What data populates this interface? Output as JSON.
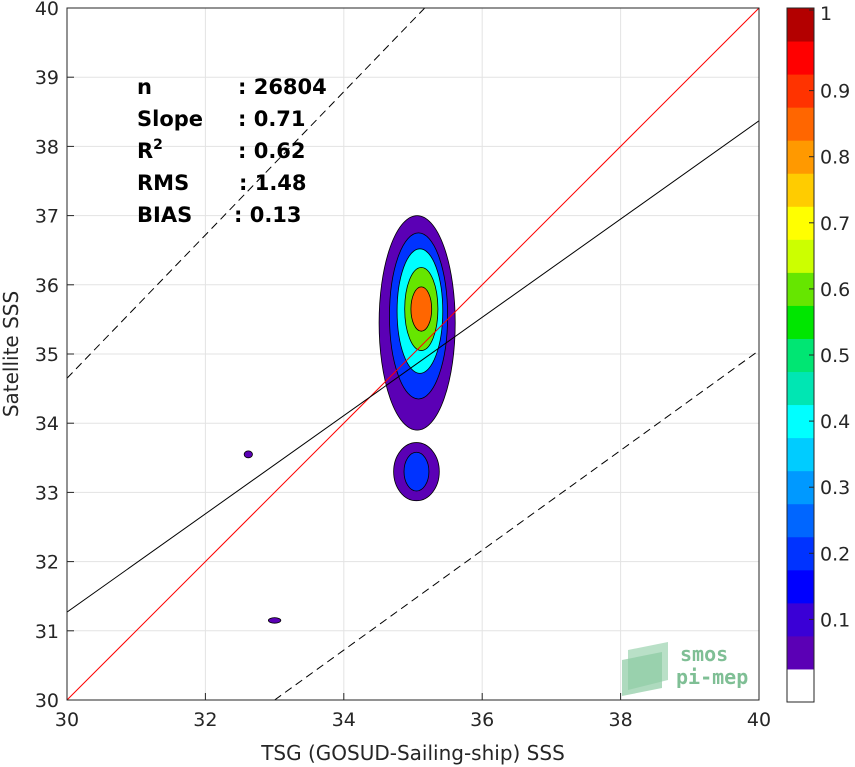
{
  "chart_data": {
    "type": "contour-scatter",
    "xlabel": "TSG (GOSUD-Sailing-ship) SSS",
    "ylabel": "Satellite SSS",
    "xlim": [
      30,
      40
    ],
    "ylim": [
      30,
      40
    ],
    "xticks": [
      "30",
      "32",
      "34",
      "36",
      "38",
      "40"
    ],
    "yticks": [
      "30",
      "31",
      "32",
      "33",
      "34",
      "35",
      "36",
      "37",
      "38",
      "39",
      "40"
    ],
    "grid": true,
    "stats": [
      {
        "name": "n",
        "value": ": 26804"
      },
      {
        "name": "Slope",
        "value": ": 0.71"
      },
      {
        "name": "R",
        "sup": "2",
        "value": ": 0.62"
      },
      {
        "name": "RMS",
        "value": ": 1.48"
      },
      {
        "name": "BIAS",
        "value": ": 0.13"
      }
    ],
    "lines": {
      "identity": {
        "color": "#ff0000",
        "points": [
          [
            30,
            30
          ],
          [
            40,
            40
          ]
        ]
      },
      "regression": {
        "color": "#000000",
        "points": [
          [
            30,
            31.27
          ],
          [
            40,
            38.37
          ]
        ]
      },
      "upper_bound": {
        "color": "#000000",
        "dashed": true,
        "points": [
          [
            30,
            34.65
          ],
          [
            40,
            45.0
          ]
        ]
      },
      "lower_bound": {
        "color": "#000000",
        "dashed": true,
        "points": [
          [
            33,
            30.0
          ],
          [
            40,
            35.05
          ]
        ]
      }
    },
    "colorbar": {
      "ticks": [
        "0.1",
        "0.2",
        "0.3",
        "0.4",
        "0.5",
        "0.6",
        "0.7",
        "0.8",
        "0.9",
        "1"
      ],
      "levels": [
        0.05,
        0.1,
        0.15,
        0.2,
        0.25,
        0.3,
        0.35,
        0.4,
        0.45,
        0.5,
        0.55,
        0.6,
        0.65,
        0.7,
        0.75,
        0.8,
        0.85,
        0.9,
        0.95,
        1.0
      ],
      "colors": [
        "#ffffff",
        "#5b00b5",
        "#3a00d6",
        "#0000ff",
        "#0033ff",
        "#0066ff",
        "#0099ff",
        "#00ccff",
        "#00ffff",
        "#00e6b3",
        "#00e673",
        "#00e600",
        "#66e600",
        "#ccff00",
        "#ffff00",
        "#ffcc00",
        "#ff9900",
        "#ff6600",
        "#ff3300",
        "#ff0000",
        "#b30000"
      ]
    },
    "density_blobs": [
      {
        "cx": 35.06,
        "cy": 35.45,
        "rx": 0.55,
        "ry": 1.55,
        "level": 0.08
      },
      {
        "cx": 35.08,
        "cy": 35.55,
        "rx": 0.42,
        "ry": 1.2,
        "level": 0.2
      },
      {
        "cx": 35.1,
        "cy": 35.62,
        "rx": 0.33,
        "ry": 0.9,
        "level": 0.4
      },
      {
        "cx": 35.12,
        "cy": 35.65,
        "rx": 0.24,
        "ry": 0.6,
        "level": 0.6
      },
      {
        "cx": 35.12,
        "cy": 35.65,
        "rx": 0.15,
        "ry": 0.32,
        "level": 0.85
      },
      {
        "cx": 35.05,
        "cy": 33.3,
        "rx": 0.33,
        "ry": 0.42,
        "level": 0.08
      },
      {
        "cx": 35.05,
        "cy": 33.3,
        "rx": 0.18,
        "ry": 0.28,
        "level": 0.2
      },
      {
        "cx": 32.62,
        "cy": 33.55,
        "rx": 0.06,
        "ry": 0.05,
        "level": 0.08
      },
      {
        "cx": 33.0,
        "cy": 31.15,
        "rx": 0.09,
        "ry": 0.04,
        "level": 0.08
      }
    ],
    "logo": {
      "line1": "smos",
      "line2": "pi-mep"
    }
  }
}
